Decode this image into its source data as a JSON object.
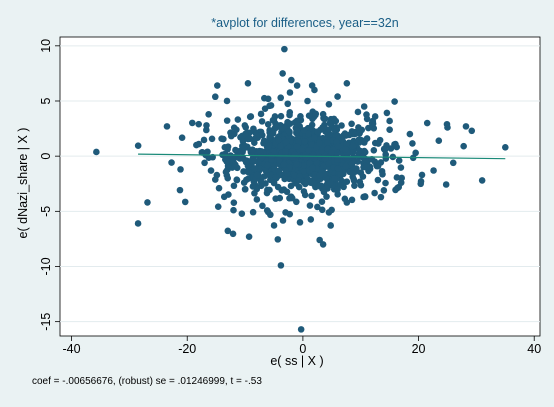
{
  "chart_data": {
    "type": "scatter",
    "title": "*avplot for differences, year==32n",
    "xlabel": "e( ss | X )",
    "ylabel": "e( dNazi_share | X )",
    "note": "coef = -.00656676, (robust) se = .01246999, t = -.53",
    "xlim": [
      -42,
      41
    ],
    "ylim": [
      -16.3,
      10.8
    ],
    "xticks": [
      -40,
      -20,
      0,
      20,
      40
    ],
    "yticks": [
      -15,
      -10,
      -5,
      0,
      5,
      10
    ],
    "grid": "horizontal",
    "marker_color": "#1f5a7a",
    "fit_color": "#1a8a78",
    "background_color": "#eaf2f3",
    "plot_color": "#ffffff",
    "fit_line": {
      "slope": -0.00656676,
      "intercept": 0.0,
      "x_range": [
        -28.5,
        35
      ]
    },
    "points": [
      [
        -28.5,
        -6.1
      ],
      [
        -23.5,
        2.7
      ],
      [
        -3.2,
        9.7
      ],
      [
        -1.0,
        6.4
      ],
      [
        -3.5,
        7.5
      ],
      [
        -14.8,
        6.4
      ],
      [
        -9.5,
        6.6
      ],
      [
        7.6,
        6.6
      ],
      [
        1.6,
        6.4
      ],
      [
        2.0,
        6.0
      ],
      [
        -3.8,
        -9.9
      ],
      [
        -0.3,
        -15.7
      ],
      [
        35.0,
        0.8
      ],
      [
        31.0,
        -2.2
      ],
      [
        -14.5,
        -2.9
      ],
      [
        -17.0,
        -0.6
      ],
      [
        -12.0,
        -4.9
      ],
      [
        -9.3,
        -7.3
      ],
      [
        3.5,
        -8.0
      ],
      [
        2.9,
        -7.6
      ],
      [
        -11.5,
        2.4
      ],
      [
        -9.0,
        3.6
      ],
      [
        -6.0,
        5.2
      ],
      [
        4.5,
        4.7
      ],
      [
        6.0,
        5.4
      ],
      [
        10.6,
        4.5
      ],
      [
        12.5,
        3.6
      ],
      [
        15.0,
        2.4
      ],
      [
        18.5,
        2.0
      ],
      [
        21.5,
        3.0
      ],
      [
        25.0,
        2.6
      ],
      [
        28.2,
        2.7
      ],
      [
        29.2,
        2.3
      ],
      [
        22.6,
        -1.3
      ],
      [
        20.6,
        -1.7
      ],
      [
        17.0,
        -2.4
      ],
      [
        14.0,
        -3.1
      ],
      [
        10.5,
        -3.7
      ],
      [
        7.6,
        -4.2
      ],
      [
        4.5,
        -5.1
      ],
      [
        2.5,
        -4.6
      ],
      [
        -0.5,
        -6.0
      ],
      [
        -3.0,
        -5.1
      ],
      [
        -7.0,
        -4.5
      ],
      [
        -13.5,
        0.8
      ],
      [
        -16.5,
        0.4
      ],
      [
        26.0,
        -0.6
      ],
      [
        27.8,
        0.9
      ],
      [
        11.0,
        -1.0
      ],
      [
        -13.0,
        -2.0
      ],
      [
        -2.0,
        6.9
      ],
      [
        -5.5,
        4.6
      ],
      [
        0.8,
        5.0
      ],
      [
        3.5,
        3.8
      ],
      [
        -8.0,
        1.8
      ],
      [
        9.0,
        2.0
      ],
      [
        -4.0,
        -3.8
      ],
      [
        1.5,
        -3.6
      ],
      [
        6.0,
        -3.0
      ],
      [
        -10.0,
        -3.0
      ],
      [
        16.0,
        1.1
      ],
      [
        13.0,
        -0.9
      ],
      [
        -18.0,
        1.1
      ],
      [
        19.5,
        0.3
      ],
      [
        23.5,
        1.4
      ]
    ]
  }
}
